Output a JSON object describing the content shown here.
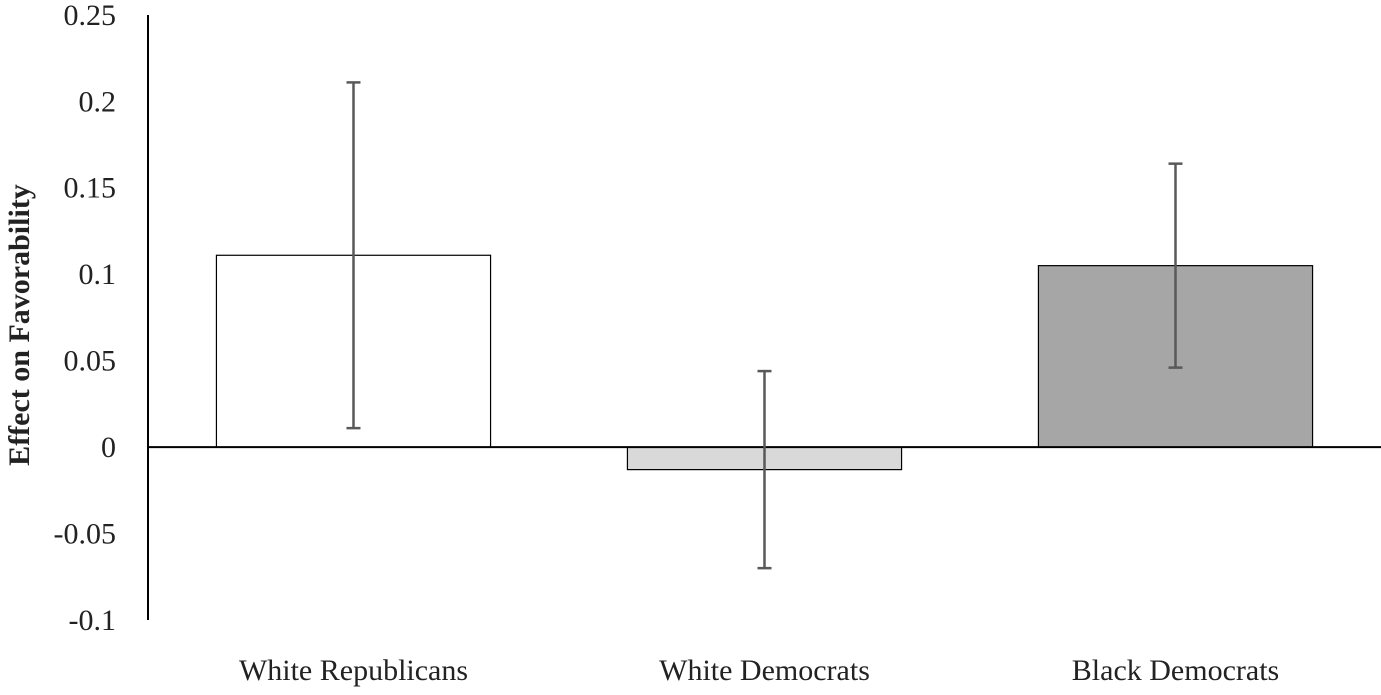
{
  "chart_data": {
    "type": "bar",
    "y_label": "Effect on Favorability",
    "categories": [
      "White Republicans",
      "White Democrats",
      "Black Democrats"
    ],
    "values": [
      0.111,
      -0.013,
      0.105
    ],
    "errors": [
      0.1,
      0.057,
      0.059
    ],
    "colors": [
      "#ffffff",
      "#d9d9d9",
      "#a6a6a6"
    ],
    "error_color": "#595959",
    "ylim": [
      -0.1,
      0.25
    ],
    "yticks": [
      -0.1,
      -0.05,
      0,
      0.05,
      0.1,
      0.15,
      0.2,
      0.25
    ],
    "grid": false
  }
}
